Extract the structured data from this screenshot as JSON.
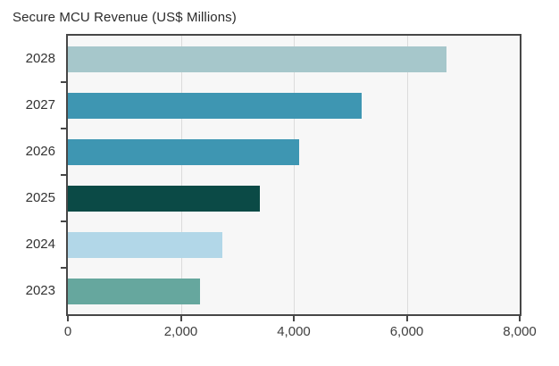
{
  "title": "Secure MCU Revenue (US$ Millions)",
  "colors": {
    "background": "#ffffff",
    "plot_background": "#f7f7f7",
    "axis": "#474747",
    "gridline": "#dcdcdc",
    "title_text": "#2b2b2b",
    "tick_label_text": "#3d3d3d"
  },
  "chart_data": {
    "type": "bar",
    "orientation": "horizontal",
    "title": "Secure MCU Revenue (US$ Millions)",
    "categories": [
      "2028",
      "2027",
      "2026",
      "2025",
      "2024",
      "2023"
    ],
    "values": [
      6700,
      5200,
      4100,
      3400,
      2730,
      2340
    ],
    "bar_colors": [
      "#a6c7cb",
      "#3e96b2",
      "#3e96b2",
      "#0b4a46",
      "#b2d7e8",
      "#66a79e"
    ],
    "xlabel": "",
    "ylabel": "",
    "xlim": [
      0,
      8000
    ],
    "xticks": [
      0,
      2000,
      4000,
      6000,
      8000
    ],
    "xtick_labels": [
      "0",
      "2,000",
      "4,000",
      "6,000",
      "8,000"
    ],
    "grid": "vertical-gridlines-at-interior-ticks",
    "legend": "none",
    "units": "US$ Millions"
  }
}
